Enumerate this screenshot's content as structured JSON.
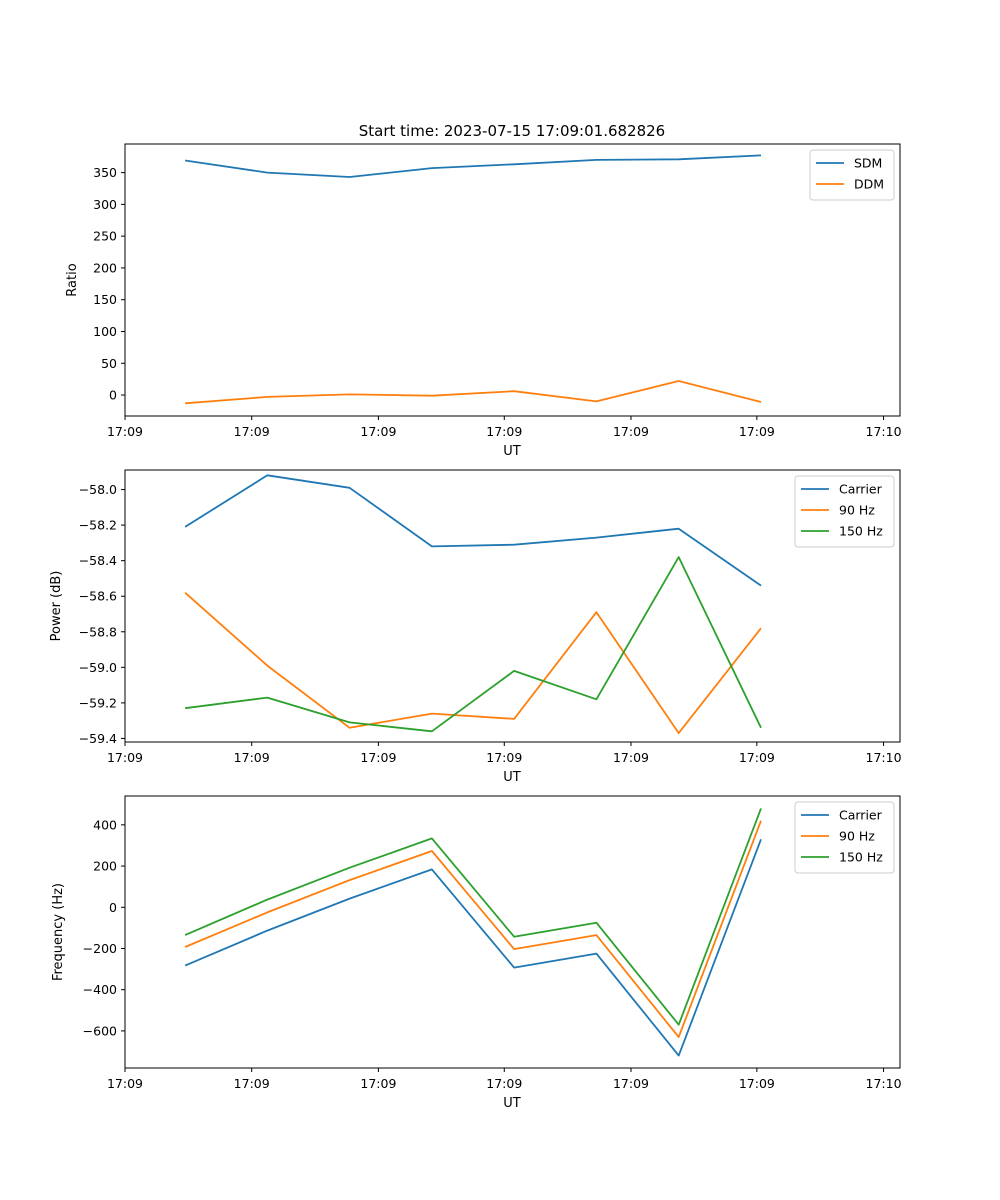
{
  "figure": {
    "title": "Start time: 2023-07-15 17:09:01.682826"
  },
  "chart_data": [
    {
      "type": "line",
      "xlabel": "UT",
      "ylabel": "Ratio",
      "x": [
        0,
        1,
        2,
        3,
        4,
        5,
        6,
        7
      ],
      "xlim": [
        -0.73,
        8.69
      ],
      "ylim": [
        -33,
        395
      ],
      "yticks": [
        0,
        50,
        100,
        150,
        200,
        250,
        300,
        350
      ],
      "xticks": [
        {
          "pos": -0.73,
          "label": "17:09"
        },
        {
          "pos": 0.81,
          "label": "17:09"
        },
        {
          "pos": 2.35,
          "label": "17:09"
        },
        {
          "pos": 3.88,
          "label": "17:09"
        },
        {
          "pos": 5.42,
          "label": "17:09"
        },
        {
          "pos": 6.95,
          "label": "17:09"
        },
        {
          "pos": 8.49,
          "label": "17:10"
        }
      ],
      "legend": "top-right",
      "series": [
        {
          "name": "SDM",
          "color": "#1f77b4",
          "values": [
            369,
            350,
            343,
            357,
            363,
            370,
            371,
            377
          ]
        },
        {
          "name": "DDM",
          "color": "#ff7f0e",
          "values": [
            -13,
            -3,
            1,
            -1,
            6,
            -10,
            22,
            -11
          ]
        }
      ]
    },
    {
      "type": "line",
      "xlabel": "UT",
      "ylabel": "Power (dB)",
      "x": [
        0,
        1,
        2,
        3,
        4,
        5,
        6,
        7
      ],
      "xlim": [
        -0.73,
        8.69
      ],
      "ylim": [
        -59.42,
        -57.89
      ],
      "yticks": [
        -59.4,
        -59.2,
        -59.0,
        -58.8,
        -58.6,
        -58.4,
        -58.2,
        -58.0
      ],
      "ytick_labels": [
        "−59.4",
        "−59.2",
        "−59.0",
        "−58.8",
        "−58.6",
        "−58.4",
        "−58.2",
        "−58.0"
      ],
      "xticks": [
        {
          "pos": -0.73,
          "label": "17:09"
        },
        {
          "pos": 0.81,
          "label": "17:09"
        },
        {
          "pos": 2.35,
          "label": "17:09"
        },
        {
          "pos": 3.88,
          "label": "17:09"
        },
        {
          "pos": 5.42,
          "label": "17:09"
        },
        {
          "pos": 6.95,
          "label": "17:09"
        },
        {
          "pos": 8.49,
          "label": "17:10"
        }
      ],
      "legend": "top-right",
      "series": [
        {
          "name": "Carrier",
          "color": "#1f77b4",
          "values": [
            -58.21,
            -57.92,
            -57.99,
            -58.32,
            -58.31,
            -58.27,
            -58.22,
            -58.54
          ]
        },
        {
          "name": "90 Hz",
          "color": "#ff7f0e",
          "values": [
            -58.58,
            -58.99,
            -59.34,
            -59.26,
            -59.29,
            -58.69,
            -59.37,
            -58.78
          ]
        },
        {
          "name": "150 Hz",
          "color": "#2ca02c",
          "values": [
            -59.23,
            -59.17,
            -59.31,
            -59.36,
            -59.02,
            -59.18,
            -58.38,
            -59.34
          ]
        }
      ]
    },
    {
      "type": "line",
      "xlabel": "UT",
      "ylabel": "Frequency (Hz)",
      "x": [
        0,
        1,
        2,
        3,
        4,
        5,
        6,
        7
      ],
      "xlim": [
        -0.73,
        8.69
      ],
      "ylim": [
        -780,
        540
      ],
      "yticks": [
        -600,
        -400,
        -200,
        0,
        200,
        400
      ],
      "ytick_labels": [
        "−600",
        "−400",
        "−200",
        "0",
        "200",
        "400"
      ],
      "xticks": [
        {
          "pos": -0.73,
          "label": "17:09"
        },
        {
          "pos": 0.81,
          "label": "17:09"
        },
        {
          "pos": 2.35,
          "label": "17:09"
        },
        {
          "pos": 3.88,
          "label": "17:09"
        },
        {
          "pos": 5.42,
          "label": "17:09"
        },
        {
          "pos": 6.95,
          "label": "17:09"
        },
        {
          "pos": 8.49,
          "label": "17:10"
        }
      ],
      "legend": "top-right",
      "series": [
        {
          "name": "Carrier",
          "color": "#1f77b4",
          "values": [
            -283,
            -113,
            42,
            184,
            -293,
            -225,
            -720,
            330
          ]
        },
        {
          "name": "90 Hz",
          "color": "#ff7f0e",
          "values": [
            -193,
            -25,
            132,
            273,
            -203,
            -135,
            -630,
            420
          ]
        },
        {
          "name": "150 Hz",
          "color": "#2ca02c",
          "values": [
            -135,
            37,
            192,
            334,
            -143,
            -75,
            -570,
            480
          ]
        }
      ]
    }
  ]
}
